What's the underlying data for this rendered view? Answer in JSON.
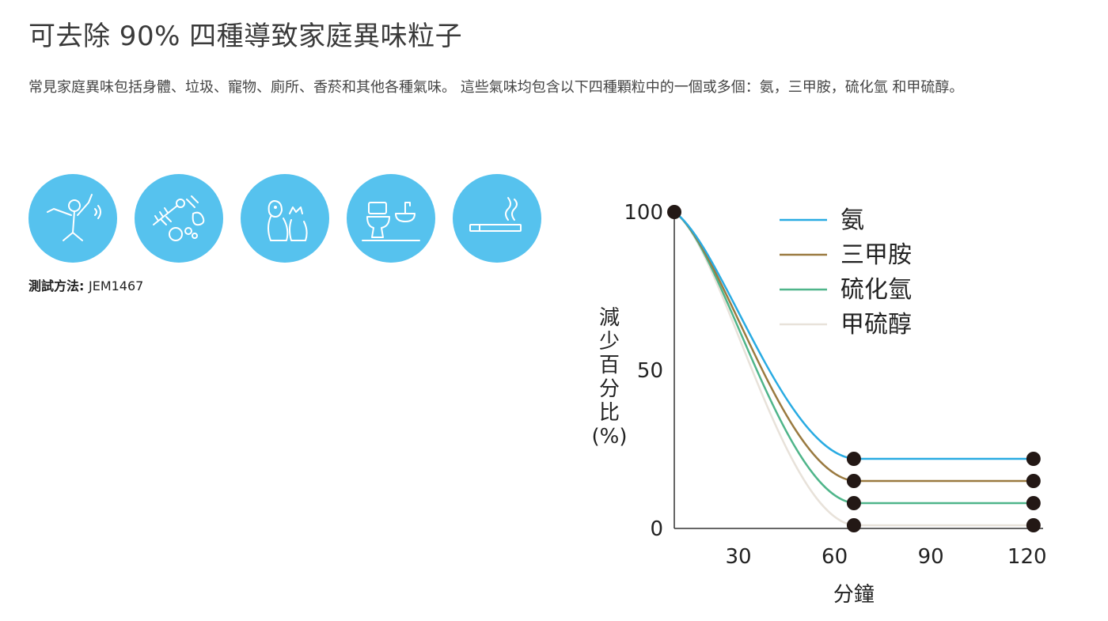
{
  "header": {
    "title": "可去除 90% 四種導致家庭異味粒子",
    "description": "常見家庭異味包括身體、垃圾、寵物、廁所、香菸和其他各種氣味。 這些氣味均包含以下四種顆粒中的一個或多個：氨，三甲胺，硫化氫 和甲硫醇。"
  },
  "icons": [
    "body-odor-icon",
    "garbage-icon",
    "pet-icon",
    "toilet-icon",
    "cigarette-icon"
  ],
  "test_method": {
    "label": "測試方法:",
    "value": "JEM1467"
  },
  "colors": {
    "icon_bg": "#56c2ee",
    "icon_line": "#ffffff"
  },
  "chart_data": {
    "type": "line",
    "xlabel": "分鐘",
    "ylabel": "減少百分比(%)",
    "xticks": [
      30,
      60,
      90,
      120
    ],
    "yticks": [
      0,
      50,
      100
    ],
    "xlim": [
      10,
      125
    ],
    "ylim": [
      0,
      100
    ],
    "legend": "top-right",
    "series": [
      {
        "name": "氨",
        "color": "#29abe2",
        "x": [
          10,
          66,
          122
        ],
        "y": [
          100,
          22,
          22
        ]
      },
      {
        "name": "三甲胺",
        "color": "#9a7a40",
        "x": [
          10,
          66,
          122
        ],
        "y": [
          100,
          15,
          15
        ]
      },
      {
        "name": "硫化氫",
        "color": "#4fb58a",
        "x": [
          10,
          66,
          122
        ],
        "y": [
          100,
          8,
          8
        ]
      },
      {
        "name": "甲硫醇",
        "color": "#e8e2da",
        "x": [
          10,
          66,
          122
        ],
        "y": [
          100,
          1,
          1
        ]
      }
    ]
  }
}
